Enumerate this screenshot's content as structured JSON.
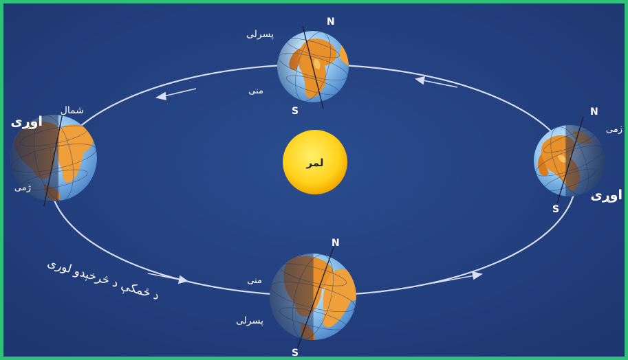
{
  "sun": {
    "label": "لمر"
  },
  "orbit": {
    "caption": "د ځمکې د څرخېدو لوری"
  },
  "earths": {
    "top": {
      "pole_north": "N",
      "pole_south": "S",
      "season_upper": "پسرلی",
      "season_lower": "منی"
    },
    "left": {
      "season_label": "اوړی",
      "upper": "شمال",
      "lower": "ژمی"
    },
    "right": {
      "pole_north": "N",
      "pole_south": "S",
      "upper": "ژمی",
      "season_label": "اوړی"
    },
    "bottom": {
      "pole_north": "N",
      "pole_south": "S",
      "season_upper": "منی",
      "season_lower": "پسرلی"
    }
  },
  "colors": {
    "background": "#23417e",
    "frame": "#2fc07a",
    "sun": "#ffd21c",
    "orbit": "#d7dff0",
    "text": "#ffffff"
  }
}
